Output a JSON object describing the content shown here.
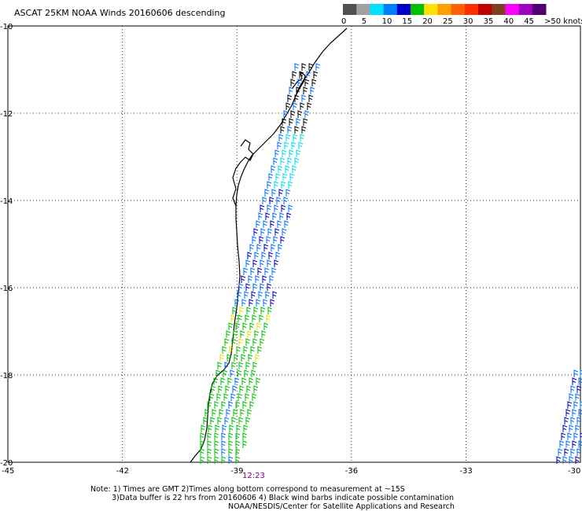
{
  "title": "ASCAT 25KM NOAA Winds 20160606 descending",
  "colorbar": {
    "labels": [
      "0",
      "5",
      "10",
      "15",
      "20",
      "25",
      "30",
      "35",
      "40",
      "45",
      ">50 knots"
    ],
    "colors": [
      "#505050",
      "#a0a0a0",
      "#00e0ff",
      "#0080ff",
      "#0000c8",
      "#00c000",
      "#ffe000",
      "#ffa000",
      "#ff6000",
      "#ff3000",
      "#c00000",
      "#804020",
      "#ff00ff",
      "#a000c0",
      "#500070"
    ]
  },
  "axes": {
    "x_ticks": [
      "-45",
      "-42",
      "-39",
      "-36",
      "-33",
      "-30"
    ],
    "x_values": [
      -45,
      -42,
      -39,
      -36,
      -33,
      -30
    ],
    "y_ticks": [
      "-10",
      "-12",
      "-14",
      "-16",
      "-18",
      "-20"
    ],
    "y_values": [
      -10,
      -12,
      -14,
      -16,
      -18,
      -20
    ],
    "lon_range": [
      -45,
      -30
    ],
    "lat_range": [
      -20,
      -10
    ],
    "grid": "dotted"
  },
  "time_label": "12:23",
  "notes": [
    "Note: 1) Times are GMT 2)Times along bottom correspond to measurement at ~15S",
    "3)Data buffer is 22 hrs from 20160606 4) Black wind barbs indicate possible contamination",
    "NOAA/NESDIS/Center for Satellite Applications and Research"
  ],
  "swath_colors": {
    "contaminated": "#000000",
    "cyan": "#00d8f0",
    "light_blue": "#0070ff",
    "dark_blue": "#0000c8",
    "green": "#00c000",
    "yellow": "#e8e000"
  }
}
